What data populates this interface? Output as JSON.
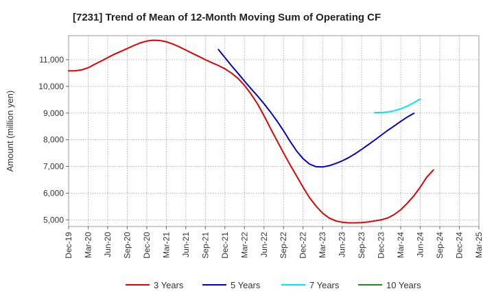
{
  "chart_data": {
    "type": "line",
    "title": "[7231]  Trend of Mean of 12-Month Moving Sum of Operating CF",
    "xlabel": "",
    "ylabel": "Amount (million yen)",
    "ylim": [
      4750,
      11900
    ],
    "y_ticks": [
      5000,
      6000,
      7000,
      8000,
      9000,
      10000,
      11000
    ],
    "y_tick_labels": [
      "5,000",
      "6,000",
      "7,000",
      "8,000",
      "9,000",
      "10,000",
      "11,000"
    ],
    "x_tick_labels": [
      "Dec-19",
      "Mar-20",
      "Jun-20",
      "Sep-20",
      "Dec-20",
      "Mar-21",
      "Jun-21",
      "Sep-21",
      "Dec-21",
      "Mar-22",
      "Jun-22",
      "Sep-22",
      "Dec-22",
      "Mar-23",
      "Jun-23",
      "Sep-23",
      "Dec-23",
      "Mar-24",
      "Jun-24",
      "Sep-24",
      "Dec-24",
      "Mar-25"
    ],
    "x_unit": "quarter index from Dec-19 (0) to Mar-25 (21)",
    "grid": true,
    "legend_position": "bottom",
    "series": [
      {
        "name": "3 Years",
        "color": "#e00000",
        "points": [
          [
            0,
            10580
          ],
          [
            0.33,
            10580
          ],
          [
            0.67,
            10620
          ],
          [
            1,
            10700
          ],
          [
            1.33,
            10830
          ],
          [
            1.67,
            10950
          ],
          [
            2,
            11080
          ],
          [
            2.33,
            11200
          ],
          [
            2.67,
            11310
          ],
          [
            3,
            11420
          ],
          [
            3.33,
            11530
          ],
          [
            3.67,
            11630
          ],
          [
            4,
            11700
          ],
          [
            4.33,
            11730
          ],
          [
            4.67,
            11720
          ],
          [
            5,
            11670
          ],
          [
            5.33,
            11590
          ],
          [
            5.67,
            11480
          ],
          [
            6,
            11360
          ],
          [
            6.33,
            11240
          ],
          [
            6.67,
            11120
          ],
          [
            7,
            11000
          ],
          [
            7.33,
            10890
          ],
          [
            7.67,
            10780
          ],
          [
            8,
            10660
          ],
          [
            8.33,
            10500
          ],
          [
            8.67,
            10300
          ],
          [
            9,
            10040
          ],
          [
            9.33,
            9720
          ],
          [
            9.67,
            9340
          ],
          [
            10,
            8900
          ],
          [
            10.33,
            8430
          ],
          [
            10.67,
            7960
          ],
          [
            11,
            7510
          ],
          [
            11.33,
            7070
          ],
          [
            11.67,
            6640
          ],
          [
            12,
            6220
          ],
          [
            12.33,
            5830
          ],
          [
            12.67,
            5510
          ],
          [
            13,
            5250
          ],
          [
            13.33,
            5070
          ],
          [
            13.67,
            4960
          ],
          [
            14,
            4910
          ],
          [
            14.33,
            4890
          ],
          [
            14.67,
            4890
          ],
          [
            15,
            4900
          ],
          [
            15.33,
            4920
          ],
          [
            15.67,
            4960
          ],
          [
            16,
            5000
          ],
          [
            16.33,
            5070
          ],
          [
            16.67,
            5200
          ],
          [
            17,
            5380
          ],
          [
            17.33,
            5620
          ],
          [
            17.67,
            5900
          ],
          [
            18,
            6230
          ],
          [
            18.33,
            6600
          ],
          [
            18.67,
            6870
          ]
        ]
      },
      {
        "name": "5 Years",
        "color": "#0000cc",
        "points": [
          [
            7.67,
            11380
          ],
          [
            8,
            11080
          ],
          [
            8.33,
            10780
          ],
          [
            8.67,
            10490
          ],
          [
            9,
            10200
          ],
          [
            9.33,
            9920
          ],
          [
            9.67,
            9640
          ],
          [
            10,
            9350
          ],
          [
            10.33,
            9040
          ],
          [
            10.67,
            8700
          ],
          [
            11,
            8340
          ],
          [
            11.33,
            7950
          ],
          [
            11.67,
            7580
          ],
          [
            12,
            7290
          ],
          [
            12.33,
            7090
          ],
          [
            12.67,
            6990
          ],
          [
            13,
            6980
          ],
          [
            13.33,
            7030
          ],
          [
            13.67,
            7110
          ],
          [
            14,
            7210
          ],
          [
            14.33,
            7330
          ],
          [
            14.67,
            7480
          ],
          [
            15,
            7640
          ],
          [
            15.33,
            7810
          ],
          [
            15.67,
            7990
          ],
          [
            16,
            8170
          ],
          [
            16.33,
            8350
          ],
          [
            16.67,
            8520
          ],
          [
            17,
            8690
          ],
          [
            17.33,
            8850
          ],
          [
            17.67,
            8990
          ]
        ]
      },
      {
        "name": "7 Years",
        "color": "#00e5ff",
        "points": [
          [
            15.67,
            9020
          ],
          [
            16,
            9020
          ],
          [
            16.33,
            9040
          ],
          [
            16.67,
            9090
          ],
          [
            17,
            9160
          ],
          [
            17.33,
            9260
          ],
          [
            17.67,
            9390
          ],
          [
            18,
            9530
          ]
        ]
      },
      {
        "name": "10 Years",
        "color": "#1a8a1a",
        "points": []
      }
    ]
  }
}
